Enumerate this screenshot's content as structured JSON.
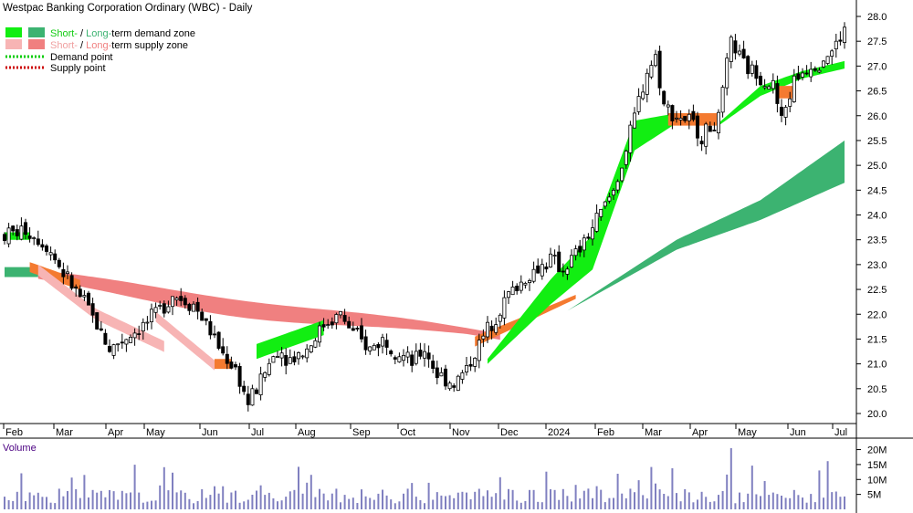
{
  "title": "Westpac Banking Corporation Ordinary (WBC) - Daily",
  "legend": {
    "demand_short": "Short-",
    "demand_sep": " / ",
    "demand_long": "Long-",
    "demand_rest": "term demand zone",
    "supply_short": "Short-",
    "supply_sep": " / ",
    "supply_long": "Long-",
    "supply_rest": "term supply zone",
    "demand_point": "Demand point",
    "supply_point": "Supply point"
  },
  "colors": {
    "short_demand": "#12ee12",
    "long_demand": "#3cb371",
    "short_supply": "#f7b4b4",
    "long_supply": "#f08080",
    "orange_band": "#f47a30",
    "candle": "#000000",
    "volume": "#8080c0",
    "volume_label": "#4b0082",
    "demand_point": "#00cc00",
    "supply_point": "#cc0000"
  },
  "volume_label": "Volume",
  "chart_data": {
    "type": "candlestick",
    "y_ticks": [
      "28.0",
      "27.5",
      "27.0",
      "26.5",
      "26.0",
      "25.5",
      "25.0",
      "24.5",
      "24.0",
      "23.5",
      "23.0",
      "22.5",
      "22.0",
      "21.5",
      "21.0",
      "20.5",
      "20.0"
    ],
    "ylim": [
      19.9,
      28.2
    ],
    "x_labels": [
      "Feb",
      "Mar",
      "Apr",
      "May",
      "Jun",
      "Jul",
      "Aug",
      "Sep",
      "Oct",
      "Nov",
      "Dec",
      "2024",
      "Feb",
      "Mar",
      "Apr",
      "May",
      "Jun",
      "Jul"
    ],
    "volume_ticks": [
      "20M",
      "15M",
      "10M",
      "5M"
    ],
    "volume_ylim": [
      0,
      22
    ],
    "price_path": [
      [
        0,
        23.6
      ],
      [
        5,
        23.7
      ],
      [
        10,
        23.4
      ],
      [
        15,
        22.7
      ],
      [
        20,
        22.1
      ],
      [
        25,
        21.3
      ],
      [
        30,
        21.6
      ],
      [
        35,
        21.9
      ],
      [
        40,
        22.4
      ],
      [
        45,
        22.2
      ],
      [
        48,
        21.8
      ],
      [
        52,
        21.2
      ],
      [
        55,
        20.9
      ],
      [
        58,
        20.2
      ],
      [
        60,
        20.5
      ],
      [
        63,
        21.0
      ],
      [
        65,
        21.3
      ],
      [
        68,
        21.1
      ],
      [
        72,
        21.3
      ],
      [
        76,
        21.8
      ],
      [
        80,
        22.0
      ],
      [
        83,
        21.6
      ],
      [
        87,
        21.3
      ],
      [
        90,
        21.5
      ],
      [
        93,
        21.3
      ],
      [
        97,
        21.0
      ],
      [
        100,
        21.3
      ],
      [
        103,
        20.8
      ],
      [
        107,
        20.6
      ],
      [
        110,
        20.9
      ],
      [
        115,
        21.7
      ],
      [
        120,
        22.4
      ],
      [
        125,
        22.8
      ],
      [
        130,
        23.1
      ],
      [
        133,
        22.9
      ],
      [
        137,
        23.3
      ],
      [
        141,
        23.9
      ],
      [
        145,
        24.5
      ],
      [
        148,
        25.3
      ],
      [
        151,
        26.3
      ],
      [
        153,
        26.9
      ],
      [
        155,
        27.2
      ],
      [
        157,
        26.2
      ],
      [
        160,
        26.0
      ],
      [
        163,
        25.9
      ],
      [
        166,
        25.6
      ],
      [
        170,
        25.9
      ],
      [
        173,
        27.5
      ],
      [
        176,
        27.0
      ],
      [
        180,
        26.8
      ],
      [
        183,
        26.6
      ],
      [
        185,
        25.9
      ],
      [
        188,
        26.7
      ],
      [
        191,
        27.0
      ],
      [
        194,
        27.1
      ],
      [
        197,
        27.3
      ],
      [
        200,
        27.7
      ]
    ],
    "zones": {
      "long_demand_upper": [
        [
          134,
          22.07
        ],
        [
          160,
          23.5
        ],
        [
          180,
          24.3
        ],
        [
          200,
          25.5
        ]
      ],
      "long_demand_lower": [
        [
          134,
          22.07
        ],
        [
          160,
          23.3
        ],
        [
          180,
          23.9
        ],
        [
          200,
          24.65
        ]
      ],
      "short_demand_upper": [
        [
          115,
          21.1
        ],
        [
          130,
          22.7
        ],
        [
          140,
          23.6
        ],
        [
          150,
          25.9
        ],
        [
          160,
          26.05
        ],
        [
          170,
          25.85
        ],
        [
          180,
          26.6
        ],
        [
          190,
          26.9
        ],
        [
          200,
          27.1
        ]
      ],
      "short_demand_lower": [
        [
          115,
          21.0
        ],
        [
          130,
          22.2
        ],
        [
          140,
          22.9
        ],
        [
          150,
          25.3
        ],
        [
          160,
          25.85
        ],
        [
          170,
          25.8
        ],
        [
          180,
          26.4
        ],
        [
          190,
          26.75
        ],
        [
          200,
          26.95
        ]
      ]
    }
  }
}
